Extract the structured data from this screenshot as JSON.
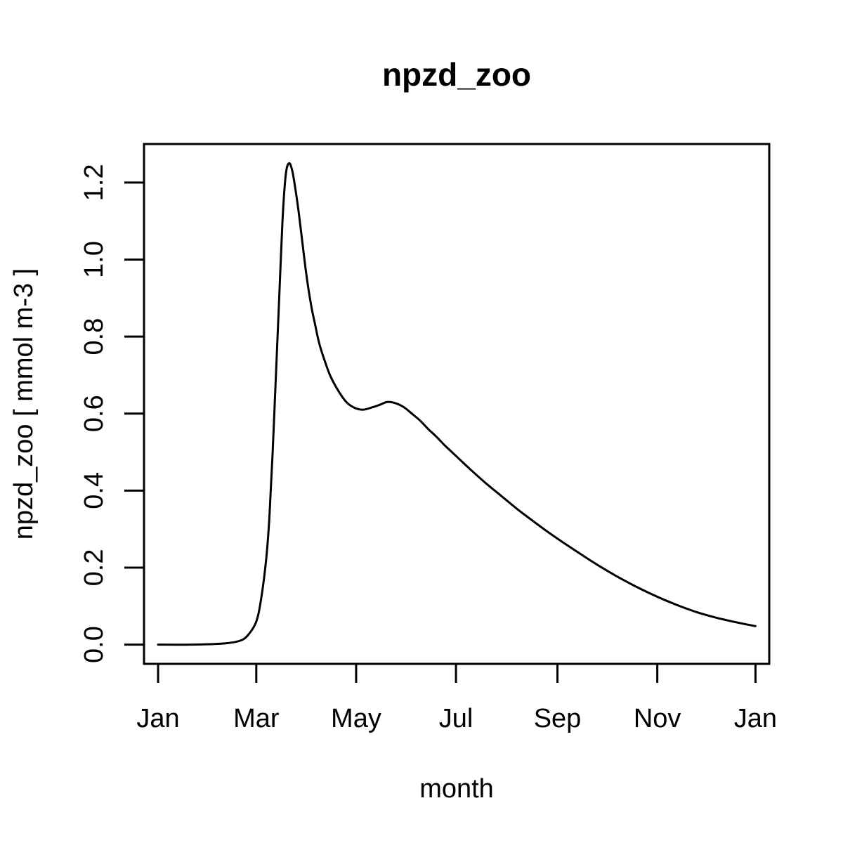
{
  "chart_data": {
    "type": "line",
    "title": "npzd_zoo",
    "xlabel": "month",
    "ylabel": "npzd_zoo [ mmol m-3 ]",
    "x_unit": "day of year",
    "xlim": [
      -8.6,
      373.4
    ],
    "ylim": [
      -0.05,
      1.3
    ],
    "grid": false,
    "legend": "none",
    "x_ticks": [
      {
        "label": "Jan",
        "value": 0
      },
      {
        "label": "Mar",
        "value": 60
      },
      {
        "label": "May",
        "value": 121
      },
      {
        "label": "Jul",
        "value": 182
      },
      {
        "label": "Sep",
        "value": 244
      },
      {
        "label": "Nov",
        "value": 305
      },
      {
        "label": "Jan",
        "value": 365
      }
    ],
    "y_ticks": [
      {
        "label": "0.0",
        "value": 0.0
      },
      {
        "label": "0.2",
        "value": 0.2
      },
      {
        "label": "0.4",
        "value": 0.4
      },
      {
        "label": "0.6",
        "value": 0.6
      },
      {
        "label": "0.8",
        "value": 0.8
      },
      {
        "label": "1.0",
        "value": 1.0
      },
      {
        "label": "1.2",
        "value": 1.2
      }
    ],
    "series": [
      {
        "line_color": "#000000",
        "x": [
          0,
          20,
          40,
          50,
          55,
          60,
          63,
          66,
          68,
          70,
          72,
          74,
          76,
          78,
          80,
          82,
          84,
          86,
          88,
          90,
          92,
          94,
          96,
          98,
          100,
          105,
          110,
          115,
          120,
          125,
          130,
          135,
          140,
          145,
          150,
          155,
          160,
          165,
          170,
          175,
          180,
          185,
          190,
          200,
          210,
          220,
          230,
          240,
          250,
          260,
          270,
          280,
          290,
          300,
          310,
          320,
          330,
          340,
          350,
          360,
          365
        ],
        "y": [
          0.0,
          0.0,
          0.003,
          0.01,
          0.025,
          0.06,
          0.12,
          0.22,
          0.33,
          0.5,
          0.7,
          0.9,
          1.1,
          1.22,
          1.25,
          1.23,
          1.18,
          1.12,
          1.05,
          0.98,
          0.92,
          0.87,
          0.83,
          0.79,
          0.76,
          0.7,
          0.66,
          0.63,
          0.615,
          0.61,
          0.615,
          0.622,
          0.63,
          0.627,
          0.617,
          0.6,
          0.582,
          0.56,
          0.54,
          0.518,
          0.498,
          0.478,
          0.458,
          0.42,
          0.385,
          0.35,
          0.318,
          0.287,
          0.258,
          0.23,
          0.203,
          0.178,
          0.155,
          0.134,
          0.115,
          0.098,
          0.083,
          0.071,
          0.061,
          0.052,
          0.048
        ]
      }
    ]
  }
}
